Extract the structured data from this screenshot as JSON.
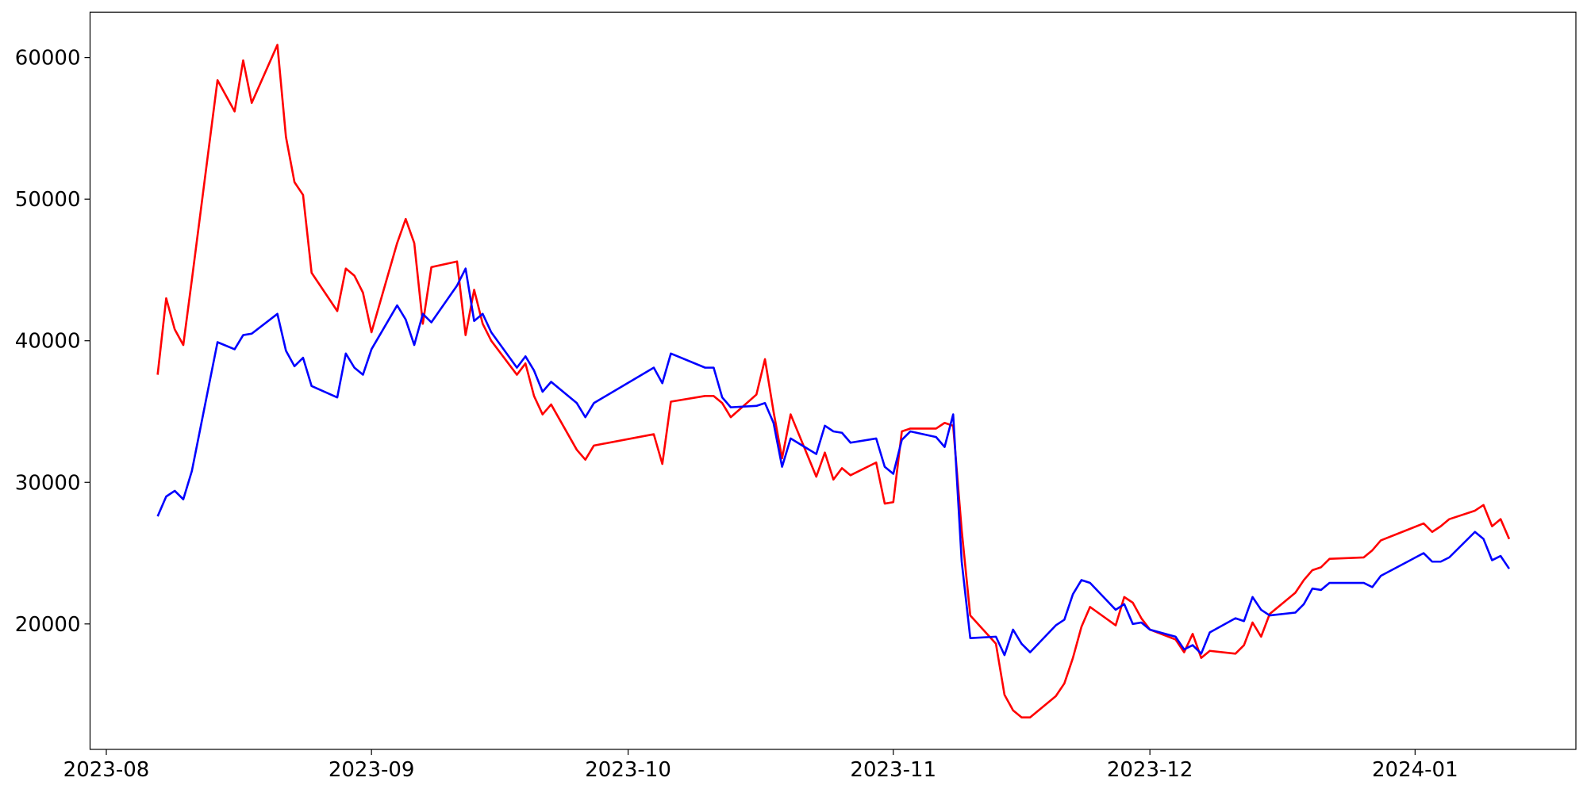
{
  "chart_data": {
    "type": "line",
    "x": [
      19576,
      19577,
      19578,
      19579,
      19580,
      19583,
      19585,
      19586,
      19587,
      19590,
      19591,
      19592,
      19593,
      19594,
      19597,
      19598,
      19599,
      19600,
      19601,
      19604,
      19605,
      19606,
      19607,
      19608,
      19611,
      19612,
      19613,
      19614,
      19615,
      19618,
      19619,
      19620,
      19621,
      19622,
      19625,
      19626,
      19627,
      19634,
      19635,
      19636,
      19640,
      19641,
      19642,
      19643,
      19646,
      19647,
      19648,
      19649,
      19650,
      19653,
      19654,
      19655,
      19656,
      19657,
      19660,
      19661,
      19662,
      19663,
      19664,
      19667,
      19668,
      19669,
      19670,
      19671,
      19674,
      19675,
      19676,
      19677,
      19678,
      19681,
      19682,
      19683,
      19684,
      19685,
      19688,
      19689,
      19690,
      19691,
      19692,
      19695,
      19696,
      19697,
      19698,
      19699,
      19702,
      19703,
      19704,
      19705,
      19706,
      19709,
      19710,
      19711,
      19712,
      19713,
      19717,
      19718,
      19719,
      19724,
      19725,
      19726,
      19727,
      19730,
      19731,
      19732,
      19733,
      19734
    ],
    "series": [
      {
        "color": "red",
        "values": [
          37600,
          43000,
          40800,
          39700,
          44300,
          58400,
          56200,
          59800,
          56800,
          60900,
          54400,
          51200,
          50300,
          44800,
          42100,
          45100,
          44600,
          43400,
          40600,
          46900,
          48600,
          46900,
          41200,
          45200,
          45600,
          40400,
          43600,
          41200,
          40000,
          37600,
          38400,
          36100,
          34800,
          35500,
          32300,
          31600,
          32600,
          33400,
          31300,
          35700,
          36100,
          36100,
          35600,
          34600,
          36200,
          38700,
          35000,
          31700,
          34800,
          30400,
          32100,
          30200,
          31000,
          30500,
          31400,
          28500,
          28600,
          33600,
          33800,
          33800,
          34200,
          34000,
          26600,
          20600,
          18600,
          15000,
          13900,
          13400,
          13400,
          14900,
          15800,
          17600,
          19800,
          21200,
          19900,
          21900,
          21500,
          20400,
          19600,
          18900,
          18000,
          19300,
          17600,
          18100,
          17900,
          18500,
          20100,
          19100,
          20700,
          22200,
          23100,
          23800,
          24000,
          24600,
          24700,
          25200,
          25900,
          27100,
          26500,
          26900,
          27400,
          28000,
          28400,
          26900,
          27400,
          26000
        ]
      },
      {
        "color": "blue",
        "values": [
          27600,
          29000,
          29400,
          28800,
          30800,
          39900,
          39400,
          40400,
          40500,
          41900,
          39300,
          38200,
          38800,
          36800,
          36000,
          39100,
          38100,
          37600,
          39400,
          42500,
          41500,
          39700,
          41900,
          41300,
          43900,
          45100,
          41400,
          41900,
          40600,
          38100,
          38900,
          37900,
          36400,
          37100,
          35600,
          34600,
          35600,
          38100,
          37000,
          39100,
          38100,
          38100,
          36000,
          35300,
          35400,
          35600,
          34200,
          31100,
          33100,
          32000,
          34000,
          33600,
          33500,
          32800,
          33100,
          31100,
          30600,
          33000,
          33600,
          33200,
          32500,
          34800,
          24400,
          19000,
          19100,
          17800,
          19600,
          18600,
          18000,
          19900,
          20300,
          22100,
          23100,
          22900,
          21000,
          21400,
          20000,
          20100,
          19600,
          19100,
          18200,
          18500,
          17900,
          19400,
          20400,
          20200,
          21900,
          21000,
          20600,
          20800,
          21400,
          22500,
          22400,
          22900,
          22900,
          22600,
          23400,
          25000,
          24400,
          24400,
          24700,
          26500,
          26000,
          24500,
          24800,
          23900
        ]
      }
    ],
    "xlim": [
      19568.1,
      19741.8
    ],
    "xticks": [
      {
        "value": 19570,
        "label": "2023-08"
      },
      {
        "value": 19601,
        "label": "2023-09"
      },
      {
        "value": 19631,
        "label": "2023-10"
      },
      {
        "value": 19662,
        "label": "2023-11"
      },
      {
        "value": 19692,
        "label": "2023-12"
      },
      {
        "value": 19723,
        "label": "2024-01"
      }
    ],
    "ylim": [
      11140,
      63210
    ],
    "yticks": [
      20000,
      30000,
      40000,
      50000,
      60000
    ],
    "grid": false
  }
}
